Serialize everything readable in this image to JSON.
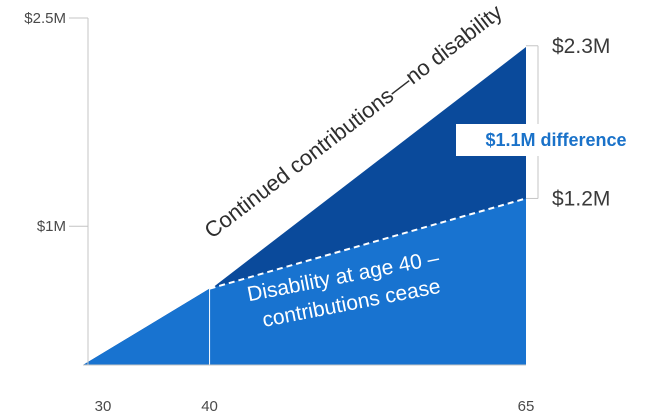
{
  "chart_data": {
    "type": "area",
    "x_ticks": [
      "30",
      "40",
      "65"
    ],
    "y_ticks": [
      "$2.5M",
      "$1M"
    ],
    "xlim": [
      30,
      65
    ],
    "ylim": [
      0,
      2.5
    ],
    "series": [
      {
        "name": "Continued contributions—no disability",
        "x": [
          30,
          40,
          65
        ],
        "y": [
          0,
          0.55,
          2.3
        ]
      },
      {
        "name": "Disability at age 40 – contributions cease",
        "x": [
          30,
          40,
          65
        ],
        "y": [
          0,
          0.55,
          1.2
        ]
      }
    ],
    "end_labels": [
      "$2.3M",
      "$1.2M"
    ],
    "difference_label": "$1.1M difference",
    "inner_label_lines": [
      "Disability at age 40 –",
      "contributions cease"
    ],
    "colors": {
      "upper": "#0a4a9b",
      "lower": "#1873d0",
      "axis": "#c4c4c4",
      "difference_text": "#1a72c9"
    }
  }
}
